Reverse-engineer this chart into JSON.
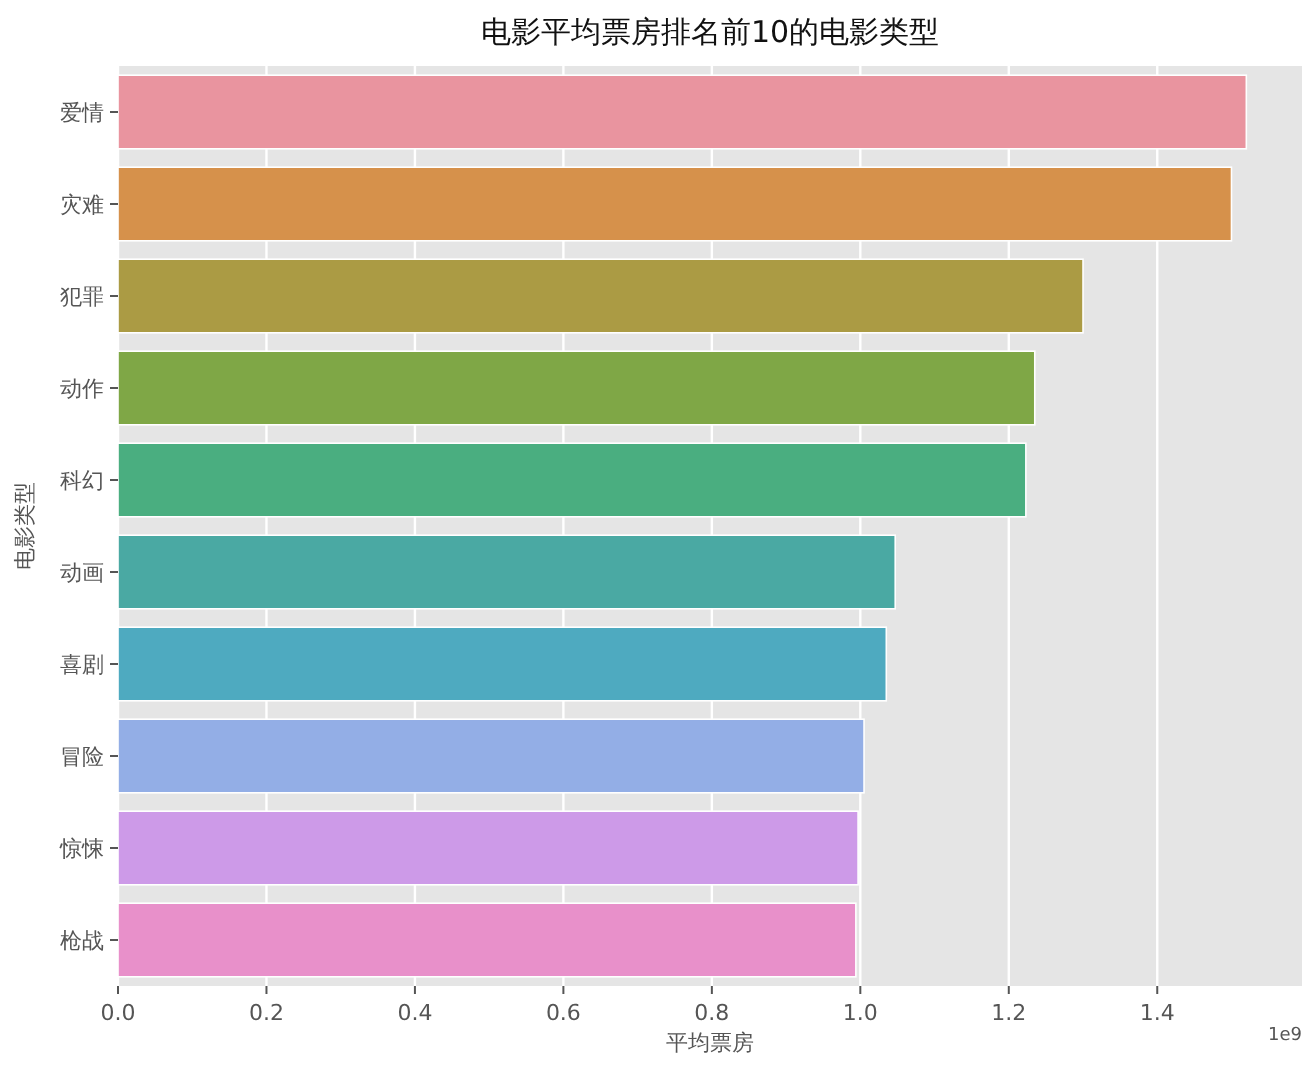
{
  "chart_data": {
    "type": "bar",
    "orientation": "horizontal",
    "title": "电影平均票房排名前10的电影类型",
    "xlabel": "平均票房",
    "ylabel": "电影类型",
    "categories": [
      "爱情",
      "灾难",
      "犯罪",
      "动作",
      "科幻",
      "动画",
      "喜剧",
      "冒险",
      "惊悚",
      "枪战"
    ],
    "values": [
      1.52,
      1.5,
      1.3,
      1.235,
      1.223,
      1.047,
      1.035,
      1.005,
      0.997,
      0.994
    ],
    "colors": [
      "#e9949f",
      "#d6914b",
      "#ab9b44",
      "#7fa746",
      "#4aae80",
      "#4aa9a3",
      "#4eaac0",
      "#93aee6",
      "#cd9ae8",
      "#e890ca"
    ],
    "xlim": [
      0,
      1.595
    ],
    "xticks": [
      {
        "value": 0,
        "label": "0.0"
      },
      0.2,
      0.4,
      0.6,
      0.8,
      {
        "value": 1,
        "label": "1.0"
      },
      1.2,
      1.4
    ],
    "grid": "x",
    "annotations": [
      "1e9"
    ]
  }
}
